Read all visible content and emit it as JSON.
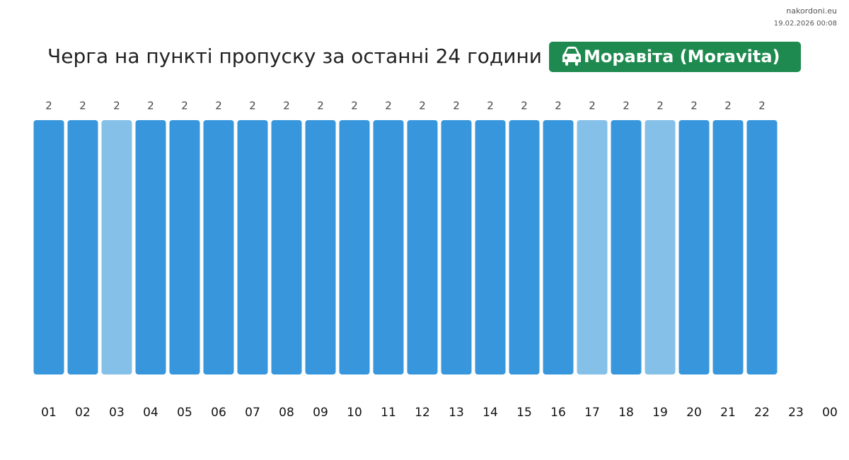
{
  "chart_data": {
    "type": "bar",
    "title": "Черга на пункті пропуску за останні 24 години",
    "badge": "Моравіта (Moravita)",
    "site": "nakordoni.eu",
    "timestamp": "19.02.2026 00:08",
    "categories": [
      "01",
      "02",
      "03",
      "04",
      "05",
      "06",
      "07",
      "08",
      "09",
      "10",
      "11",
      "12",
      "13",
      "14",
      "15",
      "16",
      "17",
      "18",
      "19",
      "20",
      "21",
      "22",
      "23",
      "00"
    ],
    "values": [
      2,
      2,
      2,
      2,
      2,
      2,
      2,
      2,
      2,
      2,
      2,
      2,
      2,
      2,
      2,
      2,
      2,
      2,
      2,
      2,
      2,
      2,
      null,
      null
    ],
    "colors": [
      "#3897dc",
      "#3897dc",
      "#85c0e8",
      "#3897dc",
      "#3897dc",
      "#3897dc",
      "#3897dc",
      "#3897dc",
      "#3897dc",
      "#3897dc",
      "#3897dc",
      "#3897dc",
      "#3897dc",
      "#3897dc",
      "#3897dc",
      "#3897dc",
      "#85c0e8",
      "#3897dc",
      "#85c0e8",
      "#3897dc",
      "#3897dc",
      "#3897dc",
      null,
      null
    ]
  }
}
